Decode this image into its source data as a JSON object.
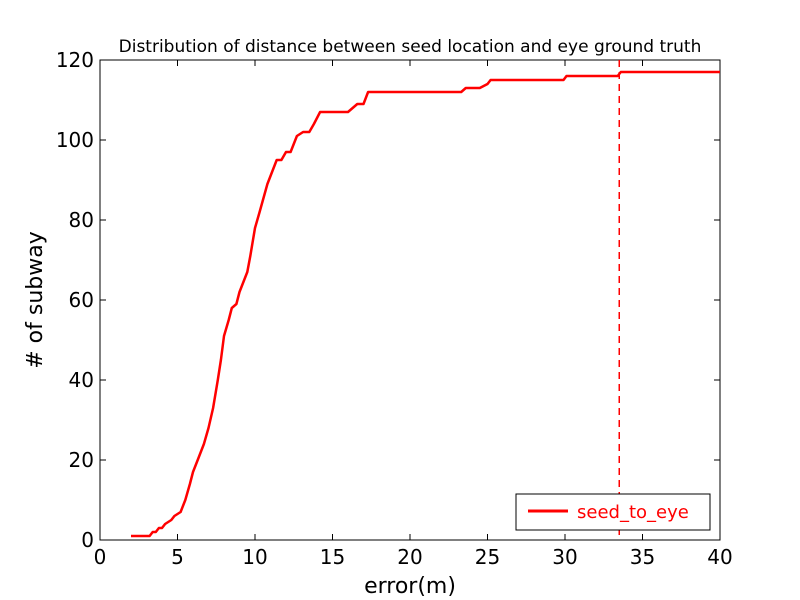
{
  "chart_data": {
    "type": "line",
    "title": "Distribution of distance between seed location and eye ground truth",
    "xlabel": "error(m)",
    "ylabel": "# of subway",
    "xlim": [
      0,
      40
    ],
    "ylim": [
      0,
      120
    ],
    "xticks": [
      "0",
      "5",
      "10",
      "15",
      "20",
      "25",
      "30",
      "35",
      "40"
    ],
    "yticks": [
      "0",
      "20",
      "40",
      "60",
      "80",
      "100",
      "120"
    ],
    "grid": false,
    "legend_position": "lower-right",
    "series": [
      {
        "name": "seed_to_eye",
        "color": "#ff0000",
        "x": [
          2.0,
          3.2,
          3.4,
          3.6,
          3.8,
          4.0,
          4.2,
          4.6,
          4.8,
          5.2,
          5.5,
          5.8,
          6.0,
          6.3,
          6.7,
          7.0,
          7.3,
          7.6,
          7.8,
          8.0,
          8.3,
          8.5,
          8.8,
          9.0,
          9.5,
          9.7,
          10.0,
          10.3,
          10.8,
          11.0,
          11.4,
          11.7,
          12.0,
          12.3,
          12.7,
          13.1,
          13.5,
          13.8,
          14.2,
          14.6,
          15.0,
          15.4,
          16.0,
          16.6,
          17.0,
          17.3,
          17.6,
          18.0,
          23.3,
          23.6,
          24.5,
          25.0,
          25.2,
          29.9,
          30.1,
          33.4,
          33.6,
          40.0
        ],
        "y": [
          1,
          1,
          2,
          2,
          3,
          3,
          4,
          5,
          6,
          7,
          10,
          14,
          17,
          20,
          24,
          28,
          33,
          40,
          45,
          51,
          55,
          58,
          59,
          62,
          67,
          71,
          78,
          82,
          89,
          91,
          95,
          95,
          97,
          97,
          101,
          102,
          102,
          104,
          107,
          107,
          107,
          107,
          107,
          109,
          109,
          112,
          112,
          112,
          112,
          113,
          113,
          114,
          115,
          115,
          116,
          116,
          117,
          117
        ]
      }
    ],
    "annotations": [
      {
        "type": "vline",
        "x": 33.5,
        "style": "dashed",
        "color": "#ff0000"
      }
    ]
  }
}
